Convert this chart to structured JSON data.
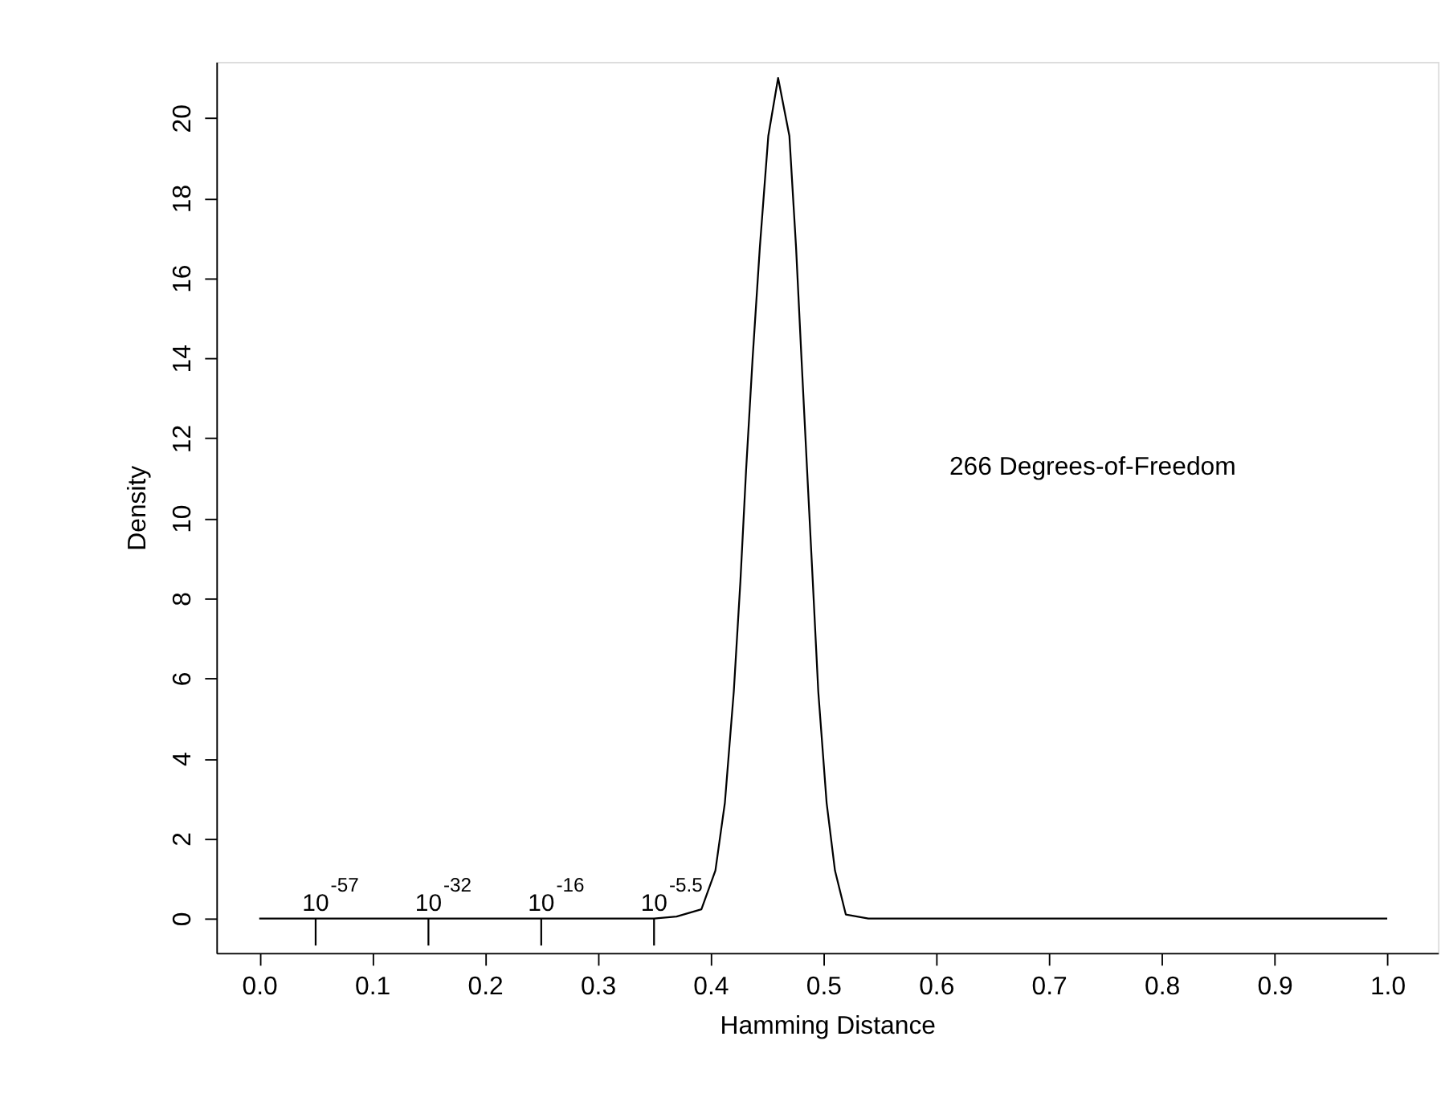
{
  "chart_data": {
    "type": "line",
    "xlabel": "Hamming Distance",
    "ylabel": "Density",
    "series": [
      {
        "color": "#000000",
        "x": [
          0.0,
          0.35,
          0.37,
          0.392,
          0.4044,
          0.4128,
          0.4207,
          0.4266,
          0.4316,
          0.4374,
          0.4438,
          0.4513,
          0.46,
          0.47,
          0.4759,
          0.4807,
          0.4857,
          0.4907,
          0.4956,
          0.503,
          0.5104,
          0.52,
          0.54,
          1.0
        ],
        "values": [
          0,
          0,
          0.05,
          0.23,
          1.2,
          2.89,
          5.67,
          8.44,
          11.2,
          14.0,
          16.77,
          19.55,
          21.0,
          19.55,
          16.77,
          14.0,
          11.2,
          8.44,
          5.67,
          2.89,
          1.2,
          0.1,
          0,
          0
        ]
      }
    ],
    "xlim": [
      -0.038,
      1.045
    ],
    "ylim": [
      -0.86,
      21.4
    ],
    "xticks": [
      {
        "value": 0.0,
        "label": "0.0"
      },
      0.1,
      0.2,
      0.3,
      0.4,
      0.5,
      0.6,
      0.7,
      0.8,
      0.9,
      {
        "value": 1.0,
        "label": "1.0"
      }
    ],
    "yticks": [
      0,
      2,
      4,
      6,
      8,
      10,
      12,
      14,
      16,
      18,
      20
    ],
    "grid": false,
    "marker": "none",
    "line_style": "solid",
    "annotations": [
      "266 Degrees-of-Freedom",
      {
        "text": "10$^{-57}$",
        "x": 0.05,
        "y": 0
      },
      {
        "text": "10$^{-32}$",
        "x": 0.15,
        "y": 0
      },
      {
        "text": "10$^{-16}$",
        "x": 0.25,
        "y": 0
      },
      {
        "text": "10$^{-5.5}$",
        "x": 0.35,
        "y": 0
      }
    ]
  }
}
